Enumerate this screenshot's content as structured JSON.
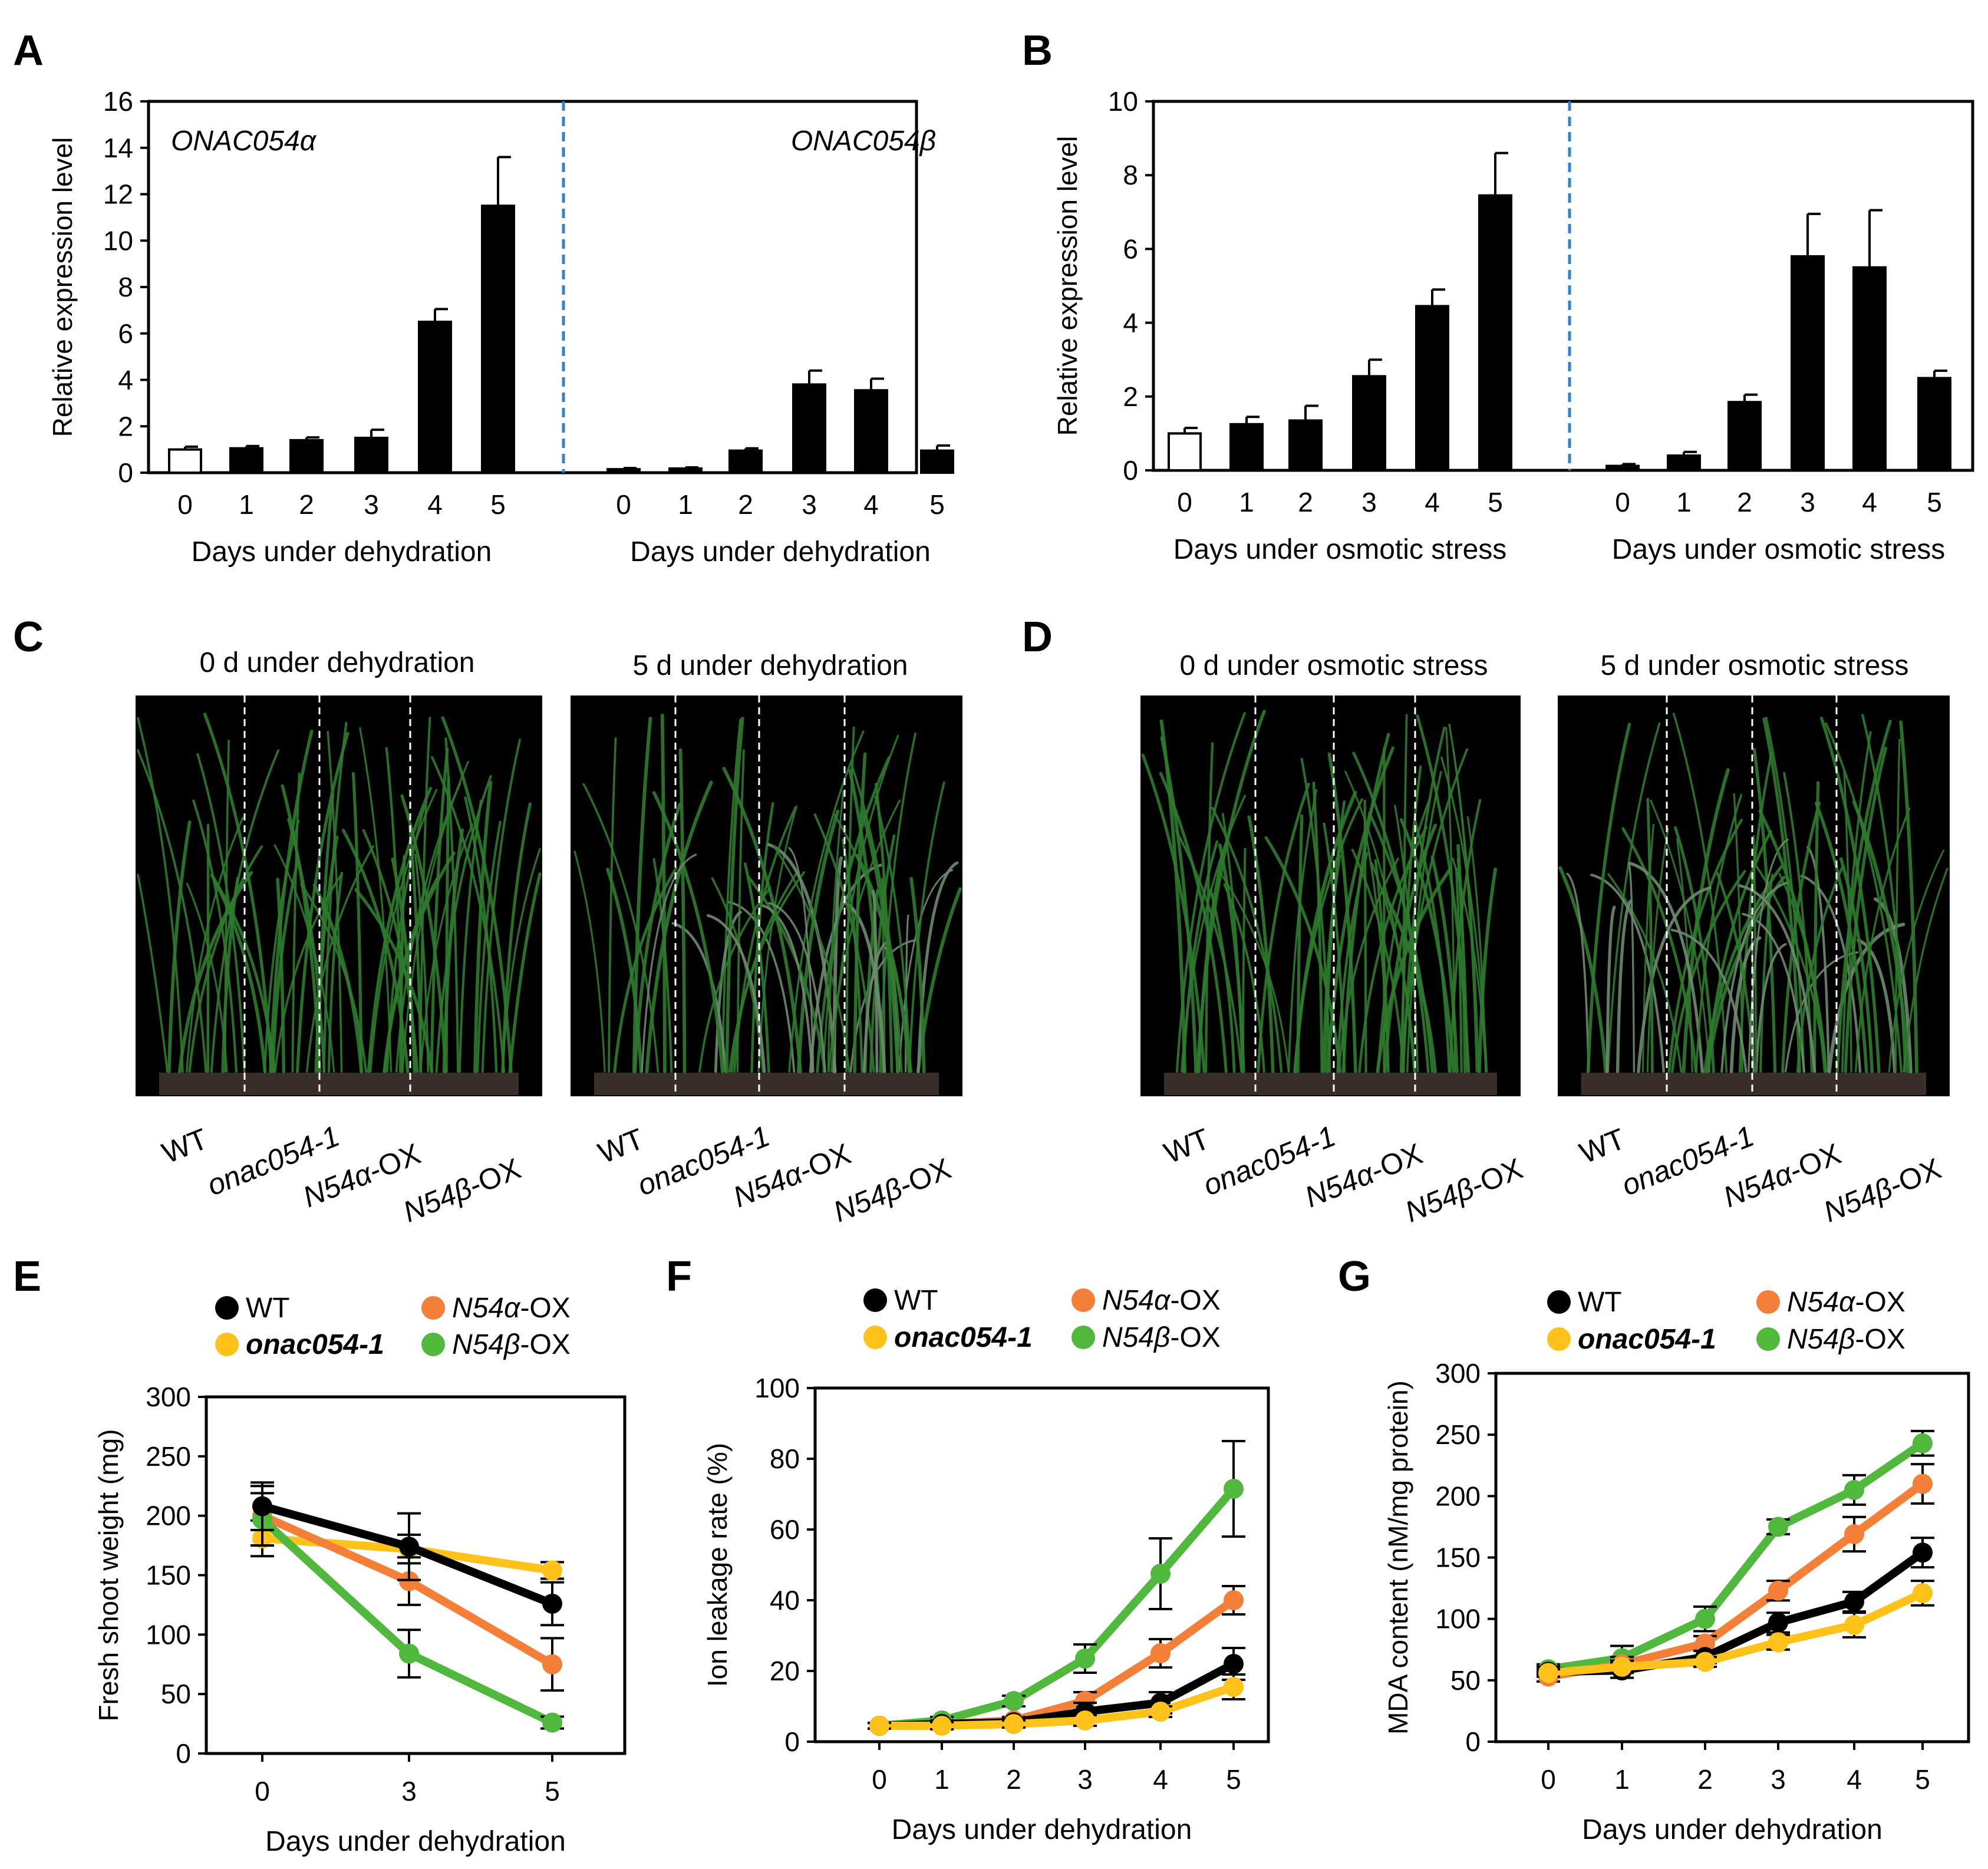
{
  "colors": {
    "black": "#000000",
    "orange": "#F47F38",
    "yellow": "#FFC21A",
    "green": "#4FB83D",
    "divider": "#2E86C8",
    "photo_bg": "#000000",
    "plant": "#2D7A2E",
    "pot": "#3A2E28"
  },
  "panels": {
    "A": {
      "letter": "A"
    },
    "B": {
      "letter": "B"
    },
    "C": {
      "letter": "C",
      "left_title": "0 d under dehydration",
      "right_title": "5 d under dehydration"
    },
    "D": {
      "letter": "D",
      "left_title": "0 d under osmotic stress",
      "right_title": "5 d under osmotic stress"
    },
    "E": {
      "letter": "E"
    },
    "F": {
      "letter": "F"
    },
    "G": {
      "letter": "G"
    }
  },
  "genotypes": [
    {
      "pre": "",
      "it": "",
      "post": "WT"
    },
    {
      "pre": "",
      "it": "onac054-1",
      "post": ""
    },
    {
      "pre": "",
      "it": "N54α",
      "post": "-OX"
    },
    {
      "pre": "",
      "it": "N54β",
      "post": "-OX"
    }
  ],
  "legend": [
    {
      "key": "wt",
      "label_it": "",
      "label_post": "WT",
      "color": "#000000"
    },
    {
      "key": "alpha",
      "label_it": "N54α",
      "label_post": "-OX",
      "color": "#F47F38"
    },
    {
      "key": "onac",
      "label_it": "onac054-1",
      "label_post": "",
      "color": "#FFC21A"
    },
    {
      "key": "beta",
      "label_it": "N54β",
      "label_post": "-OX",
      "color": "#4FB83D"
    }
  ],
  "chart_data": [
    {
      "panel": "A",
      "type": "bar",
      "ylabel": "Relative expression level",
      "ylim": [
        0,
        16
      ],
      "yticks": [
        0,
        2,
        4,
        6,
        8,
        10,
        12,
        14,
        16
      ],
      "groups": [
        {
          "gene": "ONAC054α",
          "xlabel": "Days under dehydration",
          "categories": [
            "0",
            "1",
            "2",
            "3",
            "4",
            "5"
          ],
          "values": [
            1.0,
            1.05,
            1.4,
            1.5,
            6.5,
            11.5
          ],
          "errors": [
            0.12,
            0.1,
            0.12,
            0.35,
            0.55,
            2.1
          ]
        },
        {
          "gene": "ONAC054β",
          "xlabel": "Days under dehydration",
          "categories": [
            "0",
            "1",
            "2",
            "3",
            "4",
            "5"
          ],
          "values": [
            0.15,
            0.18,
            0.95,
            3.8,
            3.55,
            0.95
          ],
          "errors": [
            0.05,
            0.05,
            0.1,
            0.6,
            0.5,
            0.22
          ]
        }
      ]
    },
    {
      "panel": "B",
      "type": "bar",
      "ylabel": "Relative expression level",
      "ylim": [
        0,
        10
      ],
      "yticks": [
        0,
        2,
        4,
        6,
        8,
        10
      ],
      "groups": [
        {
          "gene": "",
          "xlabel": "Days under osmotic stress",
          "categories": [
            "0",
            "1",
            "2",
            "3",
            "4",
            "5"
          ],
          "values": [
            1.0,
            1.25,
            1.35,
            2.55,
            4.45,
            7.45
          ],
          "errors": [
            0.15,
            0.2,
            0.4,
            0.45,
            0.45,
            1.15
          ]
        },
        {
          "gene": "",
          "xlabel": "Days under osmotic stress",
          "categories": [
            "0",
            "1",
            "2",
            "3",
            "4",
            "5"
          ],
          "values": [
            0.12,
            0.4,
            1.85,
            5.8,
            5.5,
            2.5
          ],
          "errors": [
            0.05,
            0.1,
            0.2,
            1.15,
            1.55,
            0.2
          ]
        }
      ]
    },
    {
      "panel": "E",
      "type": "line",
      "xlabel": "Days under dehydration",
      "ylabel": "Fresh shoot weight (mg)",
      "x": [
        0,
        3,
        5
      ],
      "ylim": [
        0,
        300
      ],
      "yticks": [
        0,
        50,
        100,
        150,
        200,
        250,
        300
      ],
      "series": [
        {
          "key": "onac",
          "values": [
            181,
            172,
            154
          ],
          "errors": [
            15,
            12,
            7
          ]
        },
        {
          "key": "alpha",
          "values": [
            200,
            145,
            75
          ],
          "errors": [
            25,
            20,
            22
          ]
        },
        {
          "key": "beta",
          "values": [
            197,
            84,
            26
          ],
          "errors": [
            22,
            20,
            5
          ]
        },
        {
          "key": "wt",
          "values": [
            208,
            174,
            126
          ],
          "errors": [
            20,
            28,
            18
          ]
        }
      ]
    },
    {
      "panel": "F",
      "type": "line",
      "xlabel": "Days under dehydration",
      "ylabel": "Ion leakage rate (%)",
      "x": [
        0,
        1,
        2,
        3,
        4,
        5
      ],
      "ylim": [
        0,
        100
      ],
      "yticks": [
        0,
        20,
        40,
        60,
        80,
        100
      ],
      "series": [
        {
          "key": "beta",
          "values": [
            4.5,
            6,
            11.5,
            23.5,
            47.5,
            71.5
          ],
          "errors": [
            0.8,
            1,
            1.5,
            4,
            10,
            13.5
          ]
        },
        {
          "key": "alpha",
          "values": [
            4.5,
            5,
            6,
            11.5,
            25,
            40
          ],
          "errors": [
            0.8,
            1,
            1,
            2.5,
            4,
            4
          ]
        },
        {
          "key": "wt",
          "values": [
            4.5,
            5,
            5.5,
            8.5,
            11,
            22
          ],
          "errors": [
            0.8,
            1,
            1,
            2.5,
            3,
            4.5
          ]
        },
        {
          "key": "onac",
          "values": [
            4.5,
            4.5,
            5,
            6,
            8.5,
            15.5
          ],
          "errors": [
            0.8,
            1,
            1,
            1.5,
            1.5,
            3.5
          ]
        }
      ]
    },
    {
      "panel": "G",
      "type": "line",
      "xlabel": "Days under dehydration",
      "ylabel": "MDA content (nM/mg protein)",
      "x": [
        0,
        1,
        2,
        3,
        4,
        5
      ],
      "ylim": [
        0,
        300
      ],
      "yticks": [
        0,
        50,
        100,
        150,
        200,
        250,
        300
      ],
      "series": [
        {
          "key": "beta",
          "values": [
            59,
            68,
            100,
            175,
            205,
            243
          ],
          "errors": [
            4,
            10,
            10,
            6,
            12,
            10
          ]
        },
        {
          "key": "alpha",
          "values": [
            53,
            63,
            80,
            123,
            169,
            210
          ],
          "errors": [
            4,
            6,
            6,
            8,
            14,
            16
          ]
        },
        {
          "key": "wt",
          "values": [
            57,
            58,
            69,
            97,
            114,
            154
          ],
          "errors": [
            4,
            6,
            5,
            8,
            8,
            12
          ]
        },
        {
          "key": "onac",
          "values": [
            56,
            61,
            65,
            81,
            95,
            121
          ],
          "errors": [
            3,
            5,
            4,
            6,
            10,
            10
          ]
        }
      ]
    }
  ]
}
